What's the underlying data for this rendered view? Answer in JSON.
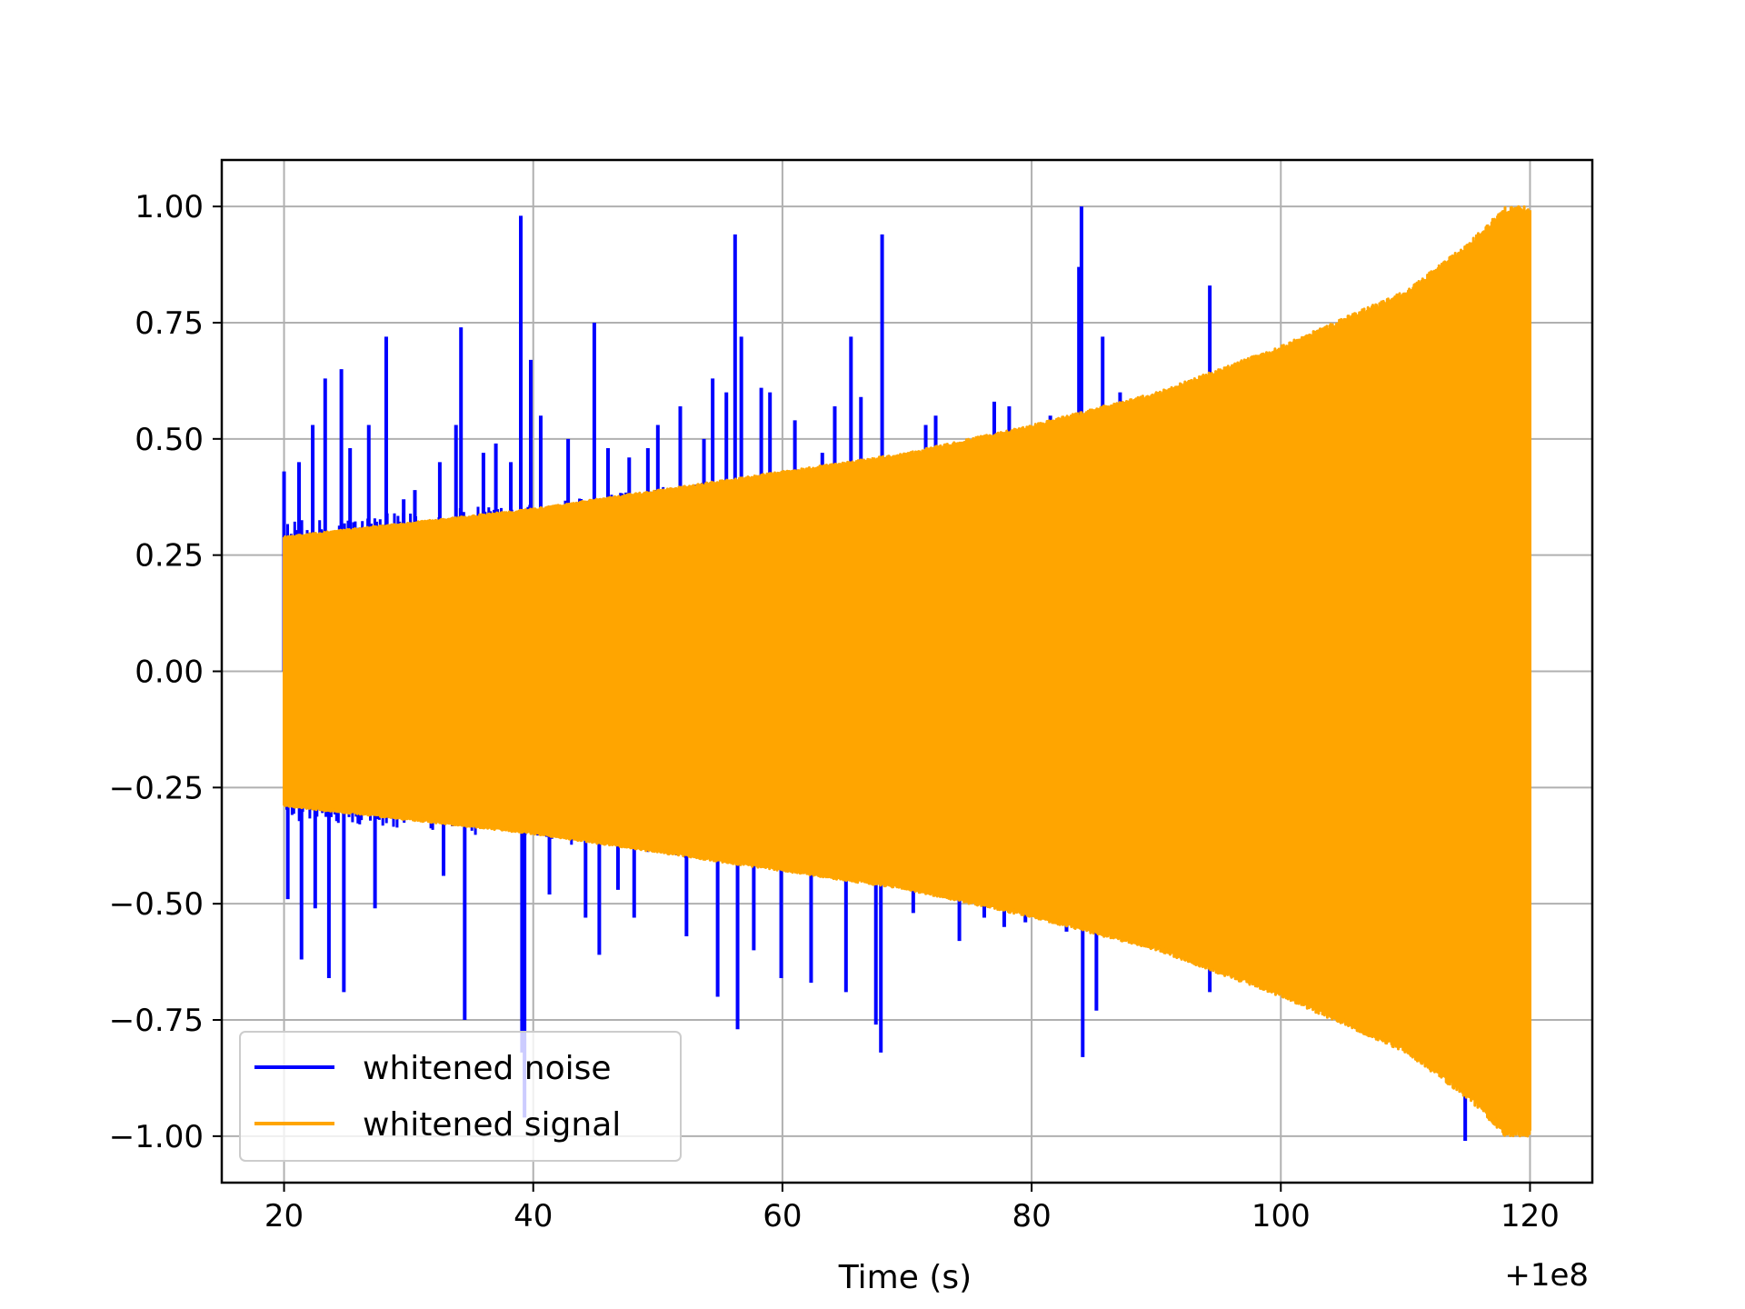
{
  "chart_data": {
    "type": "line",
    "title": "",
    "xlabel": "Time (s)",
    "ylabel": "",
    "x_offset_label": "+1e8",
    "xlim": [
      15,
      125
    ],
    "ylim": [
      -1.1,
      1.1
    ],
    "x_ticks": [
      20,
      40,
      60,
      80,
      100,
      120
    ],
    "x_tick_labels": [
      "20",
      "40",
      "60",
      "80",
      "100",
      "120"
    ],
    "y_ticks": [
      1.0,
      0.75,
      0.5,
      0.25,
      0.0,
      -0.25,
      -0.5,
      -0.75,
      -1.0
    ],
    "y_tick_labels": [
      "1.00",
      "0.75",
      "0.50",
      "0.25",
      "0.00",
      "−0.25",
      "−0.50",
      "−0.75",
      "−1.00"
    ],
    "grid": true,
    "legend": {
      "position": "lower-left"
    },
    "series": [
      {
        "name": "whitened noise",
        "color": "#0000ff",
        "x_range": [
          20,
          120
        ],
        "envelope": {
          "x": [
            20,
            40,
            60,
            80,
            100,
            120
          ],
          "upper": [
            0.31,
            0.35,
            0.41,
            0.5,
            0.62,
            0.75
          ],
          "lower": [
            -0.31,
            -0.35,
            -0.41,
            -0.5,
            -0.62,
            -0.75
          ]
        },
        "peaks": [
          {
            "x": 20.0,
            "y": 0.43
          },
          {
            "x": 20.3,
            "y": -0.49
          },
          {
            "x": 21.2,
            "y": 0.45
          },
          {
            "x": 21.4,
            "y": -0.62
          },
          {
            "x": 22.3,
            "y": 0.53
          },
          {
            "x": 22.5,
            "y": -0.51
          },
          {
            "x": 23.3,
            "y": 0.63
          },
          {
            "x": 23.6,
            "y": -0.66
          },
          {
            "x": 24.6,
            "y": 0.65
          },
          {
            "x": 24.8,
            "y": -0.69
          },
          {
            "x": 25.3,
            "y": 0.48
          },
          {
            "x": 26.8,
            "y": 0.53
          },
          {
            "x": 27.3,
            "y": -0.51
          },
          {
            "x": 28.2,
            "y": 0.72
          },
          {
            "x": 29.6,
            "y": 0.37
          },
          {
            "x": 30.5,
            "y": 0.39
          },
          {
            "x": 32.5,
            "y": 0.45
          },
          {
            "x": 32.8,
            "y": -0.44
          },
          {
            "x": 33.8,
            "y": 0.53
          },
          {
            "x": 34.2,
            "y": 0.74
          },
          {
            "x": 34.5,
            "y": -0.75
          },
          {
            "x": 36.0,
            "y": 0.47
          },
          {
            "x": 37.0,
            "y": 0.49
          },
          {
            "x": 38.2,
            "y": 0.45
          },
          {
            "x": 39.0,
            "y": 0.98
          },
          {
            "x": 39.1,
            "y": -0.82
          },
          {
            "x": 39.3,
            "y": -0.96
          },
          {
            "x": 39.8,
            "y": 0.67
          },
          {
            "x": 40.6,
            "y": 0.55
          },
          {
            "x": 41.3,
            "y": -0.48
          },
          {
            "x": 42.8,
            "y": 0.5
          },
          {
            "x": 44.2,
            "y": -0.53
          },
          {
            "x": 44.9,
            "y": 0.75
          },
          {
            "x": 45.3,
            "y": -0.61
          },
          {
            "x": 46.0,
            "y": 0.48
          },
          {
            "x": 46.8,
            "y": -0.47
          },
          {
            "x": 47.7,
            "y": 0.46
          },
          {
            "x": 48.1,
            "y": -0.53
          },
          {
            "x": 49.2,
            "y": 0.48
          },
          {
            "x": 50.0,
            "y": 0.53
          },
          {
            "x": 51.8,
            "y": 0.57
          },
          {
            "x": 52.3,
            "y": -0.57
          },
          {
            "x": 53.7,
            "y": 0.5
          },
          {
            "x": 54.4,
            "y": 0.63
          },
          {
            "x": 54.8,
            "y": -0.7
          },
          {
            "x": 55.5,
            "y": 0.6
          },
          {
            "x": 56.2,
            "y": 0.94
          },
          {
            "x": 56.4,
            "y": -0.77
          },
          {
            "x": 56.7,
            "y": 0.72
          },
          {
            "x": 57.7,
            "y": -0.6
          },
          {
            "x": 58.3,
            "y": 0.61
          },
          {
            "x": 59.0,
            "y": 0.6
          },
          {
            "x": 59.9,
            "y": -0.66
          },
          {
            "x": 61.0,
            "y": 0.54
          },
          {
            "x": 62.3,
            "y": -0.67
          },
          {
            "x": 63.2,
            "y": 0.47
          },
          {
            "x": 64.2,
            "y": 0.57
          },
          {
            "x": 65.1,
            "y": -0.69
          },
          {
            "x": 65.5,
            "y": 0.72
          },
          {
            "x": 66.3,
            "y": 0.59
          },
          {
            "x": 67.5,
            "y": -0.76
          },
          {
            "x": 68.0,
            "y": 0.94
          },
          {
            "x": 67.9,
            "y": -0.82
          },
          {
            "x": 69.8,
            "y": 0.44
          },
          {
            "x": 70.5,
            "y": -0.52
          },
          {
            "x": 71.5,
            "y": 0.53
          },
          {
            "x": 72.3,
            "y": 0.55
          },
          {
            "x": 73.4,
            "y": 0.47
          },
          {
            "x": 74.2,
            "y": -0.58
          },
          {
            "x": 75.0,
            "y": 0.47
          },
          {
            "x": 76.2,
            "y": -0.53
          },
          {
            "x": 77.0,
            "y": 0.58
          },
          {
            "x": 77.8,
            "y": -0.55
          },
          {
            "x": 78.2,
            "y": 0.57
          },
          {
            "x": 78.9,
            "y": 0.5
          },
          {
            "x": 79.5,
            "y": -0.54
          },
          {
            "x": 81.5,
            "y": 0.55
          },
          {
            "x": 82.8,
            "y": -0.56
          },
          {
            "x": 83.8,
            "y": 0.87
          },
          {
            "x": 84.0,
            "y": 1.0
          },
          {
            "x": 84.1,
            "y": -0.83
          },
          {
            "x": 85.7,
            "y": 0.72
          },
          {
            "x": 85.2,
            "y": -0.73
          },
          {
            "x": 87.1,
            "y": 0.6
          },
          {
            "x": 94.3,
            "y": 0.83
          },
          {
            "x": 94.3,
            "y": -0.69
          },
          {
            "x": 114.8,
            "y": -1.01
          }
        ]
      },
      {
        "name": "whitened signal",
        "color": "#ffa500",
        "x_range": [
          20,
          120
        ],
        "envelope": {
          "x": [
            20,
            30,
            40,
            50,
            60,
            70,
            80,
            90,
            100,
            110,
            115,
            118,
            120
          ],
          "amplitude": [
            0.29,
            0.32,
            0.35,
            0.39,
            0.43,
            0.47,
            0.53,
            0.6,
            0.7,
            0.82,
            0.92,
            1.0,
            1.0
          ]
        }
      }
    ]
  }
}
